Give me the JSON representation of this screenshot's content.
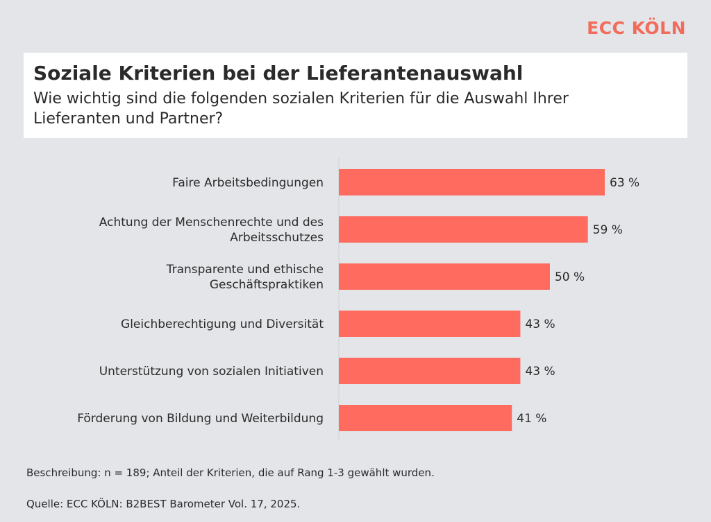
{
  "brand": "ECC KÖLN",
  "chart_data": {
    "type": "bar",
    "orientation": "horizontal",
    "title": "Soziale Kriterien bei der Lieferantenauswahl",
    "subtitle": "Wie wichtig sind die folgenden sozialen Kriterien für die Auswahl Ihrer Lieferanten und Partner?",
    "categories": [
      [
        "Faire Arbeitsbedingungen"
      ],
      [
        "Achtung der Menschenrechte und des",
        "Arbeitsschutzes"
      ],
      [
        "Transparente und ethische",
        "Geschäftspraktiken"
      ],
      [
        "Gleichberechtigung und Diversität"
      ],
      [
        "Unterstützung von sozialen Initiativen"
      ],
      [
        "Förderung von Bildung und Weiterbildung"
      ]
    ],
    "values": [
      63,
      59,
      50,
      43,
      43,
      41
    ],
    "value_labels": [
      "63 %",
      "59 %",
      "50 %",
      "43 %",
      "43 %",
      "41 %"
    ],
    "unit": "%",
    "xlim": [
      0,
      100
    ],
    "bar_color": "#ff6b5e",
    "grid": false,
    "legend": "none"
  },
  "footer": {
    "description": "Beschreibung: n = 189; Anteil der Kriterien, die auf Rang 1-3 gewählt wurden.",
    "source": "Quelle: ECC KÖLN: B2BEST Barometer Vol. 17, 2025."
  }
}
